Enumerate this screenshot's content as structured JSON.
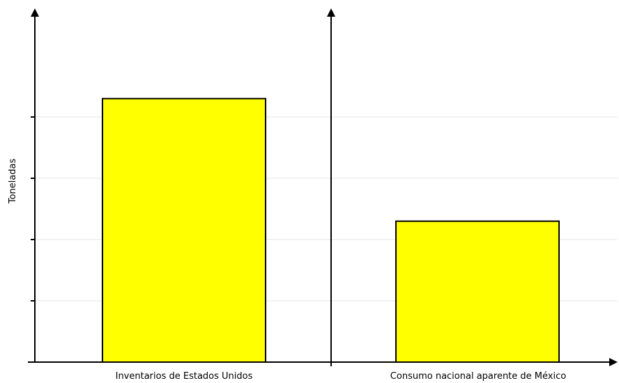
{
  "chart_data": {
    "type": "bar",
    "ylabel": "Toneladas",
    "categories": [
      "Inventarios de Estados Unidos",
      "Consumo nacional aparente de México"
    ],
    "values": [
      4.3,
      2.3
    ],
    "ylim": [
      0,
      5
    ],
    "yticks": [
      1,
      2,
      3,
      4
    ],
    "y_tick_labels_shown": false,
    "grid": true,
    "bar_color": "#ffff00",
    "bar_edge_color": "#000000",
    "grid_color": "#e6e6e6"
  }
}
